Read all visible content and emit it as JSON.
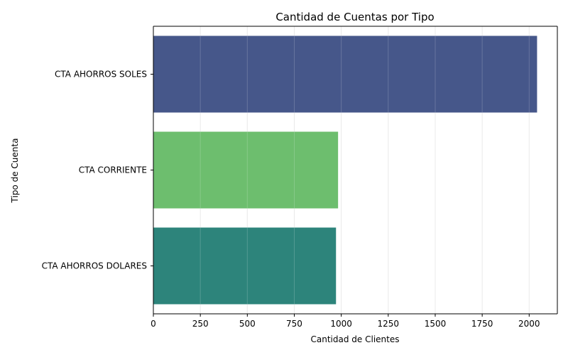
{
  "chart_data": {
    "type": "bar",
    "orientation": "horizontal",
    "title": "Cantidad de Cuentas por Tipo",
    "xlabel": "Cantidad de Clientes",
    "ylabel": "Tipo de Cuenta",
    "categories": [
      "CTA AHORROS SOLES",
      "CTA CORRIENTE",
      "CTA AHORROS DOLARES"
    ],
    "values": [
      2042,
      983,
      972
    ],
    "colors": [
      "#46578a",
      "#6dbe6e",
      "#2d847b"
    ],
    "xlim": [
      0,
      2150
    ],
    "xticks": [
      0,
      250,
      500,
      750,
      1000,
      1250,
      1500,
      1750,
      2000
    ],
    "grid": "x",
    "legend": "none"
  }
}
